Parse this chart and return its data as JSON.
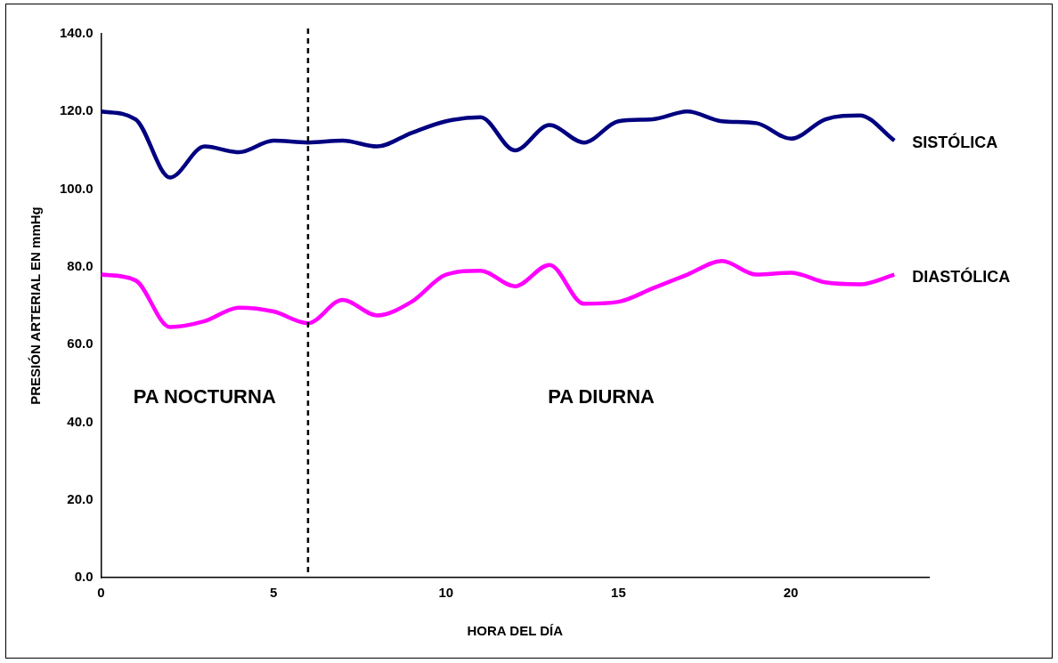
{
  "chart_data": {
    "type": "line",
    "xlabel": "HORA DEL DÍA",
    "ylabel": "PRESIÓN ARTERIAL EN mmHg",
    "x": [
      0,
      1,
      2,
      3,
      4,
      5,
      6,
      7,
      8,
      9,
      10,
      11,
      12,
      13,
      14,
      15,
      16,
      17,
      18,
      19,
      20,
      21,
      22,
      23
    ],
    "series": [
      {
        "name": "SISTÓLICA",
        "color": "#000080",
        "values": [
          120,
          118,
          103,
          111,
          109.5,
          112.5,
          112,
          112.5,
          111,
          114.5,
          117.5,
          118.5,
          110,
          116.5,
          112,
          117.5,
          118,
          120,
          117.5,
          117,
          113,
          118,
          119,
          112.5
        ]
      },
      {
        "name": "DIASTÓLICA",
        "color": "#ff00ff",
        "values": [
          78,
          76.5,
          64.5,
          66,
          69.5,
          68.5,
          65.5,
          71.5,
          67.5,
          71,
          78,
          79,
          75,
          80.5,
          70.5,
          71,
          74.5,
          78,
          81.5,
          78,
          78.5,
          76,
          75.5,
          78
        ]
      }
    ],
    "xlim": [
      0,
      24
    ],
    "xticks": [
      0,
      5,
      10,
      15,
      20
    ],
    "ylim": [
      0,
      140
    ],
    "yticks": [
      {
        "value": 0,
        "label": "0.0"
      },
      {
        "value": 20,
        "label": "20.0"
      },
      {
        "value": 40,
        "label": "40.0"
      },
      {
        "value": 60,
        "label": "60.0"
      },
      {
        "value": 80,
        "label": "80.0"
      },
      {
        "value": 100,
        "label": "100.0"
      },
      {
        "value": 120,
        "label": "120.0"
      },
      {
        "value": 140,
        "label": "140.0"
      }
    ],
    "ref_lines": [
      {
        "axis": "x",
        "value": 6,
        "label": null,
        "color": "#000000",
        "line_style": "dashed"
      }
    ],
    "annotations": [
      "PA NOCTURNA",
      "PA DIURNA"
    ],
    "grid": false,
    "legend": false,
    "marker": "none",
    "line_style": "solid"
  }
}
